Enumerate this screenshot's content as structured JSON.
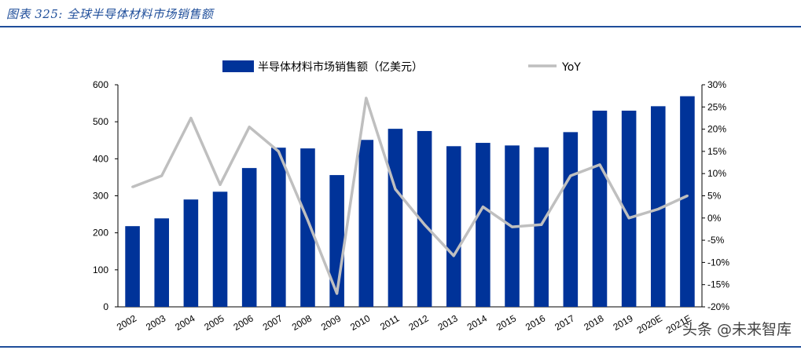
{
  "header": {
    "title": "图表 325:  全球半导体材料市场销售额"
  },
  "watermark": "头条 @未来智库",
  "colors": {
    "bar": "#003399",
    "line": "#bfbfbf",
    "title": "#1f4e9a"
  },
  "chart_data": {
    "type": "bar",
    "categories": [
      "2002",
      "2003",
      "2004",
      "2005",
      "2006",
      "2007",
      "2008",
      "2009",
      "2010",
      "2011",
      "2012",
      "2013",
      "2014",
      "2015",
      "2016",
      "2017",
      "2018",
      "2019",
      "2020E",
      "2021E"
    ],
    "series": [
      {
        "name": "半导体材料市场销售额（亿美元）",
        "type": "bar",
        "axis": "left",
        "values": [
          218,
          239,
          290,
          311,
          375,
          430,
          428,
          356,
          451,
          481,
          475,
          434,
          443,
          436,
          431,
          472,
          530,
          530,
          542,
          569
        ]
      },
      {
        "name": "YoY",
        "type": "line",
        "axis": "right",
        "values": [
          7.0,
          9.5,
          22.5,
          7.5,
          20.5,
          15.0,
          -0.5,
          -17.0,
          27.0,
          6.5,
          -1.5,
          -8.5,
          2.5,
          -2.0,
          -1.5,
          9.5,
          12.0,
          0.0,
          2.0,
          5.0
        ]
      }
    ],
    "ylim_left": [
      0,
      600
    ],
    "yticks_left": [
      "0",
      "100",
      "200",
      "300",
      "400",
      "500",
      "600"
    ],
    "ylim_right": [
      -20,
      30
    ],
    "yticks_right": [
      "-20%",
      "-15%",
      "-10%",
      "-5%",
      "0%",
      "5%",
      "10%",
      "15%",
      "20%",
      "25%",
      "30%"
    ],
    "legend_position": "top",
    "grid": false
  }
}
